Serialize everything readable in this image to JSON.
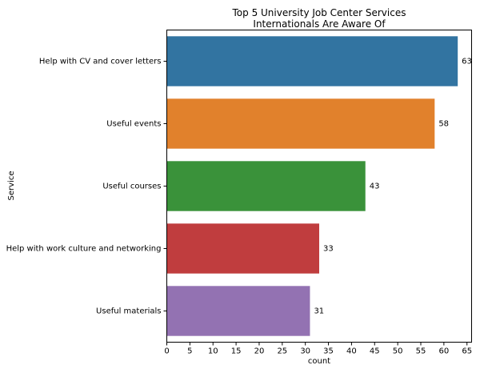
{
  "chart_data": {
    "type": "bar",
    "orientation": "horizontal",
    "title": "Top 5 University Job Center Services\nInternationals Are Aware Of",
    "xlabel": "count",
    "ylabel": "Service",
    "categories": [
      "Help with CV and cover letters",
      "Useful events",
      "Useful courses",
      "Help with work culture and networking",
      "Useful materials"
    ],
    "values": [
      63,
      58,
      43,
      33,
      31
    ],
    "data_labels": [
      "63",
      "58",
      "43",
      "33",
      "31"
    ],
    "colors": [
      "#3274a1",
      "#e1812c",
      "#3a923a",
      "#c03d3e",
      "#9372b2"
    ],
    "xlim": [
      0,
      66
    ],
    "x_ticks": [
      0,
      5,
      10,
      15,
      20,
      25,
      30,
      35,
      40,
      45,
      50,
      55,
      60,
      65
    ],
    "grid": false,
    "legend": "none"
  }
}
